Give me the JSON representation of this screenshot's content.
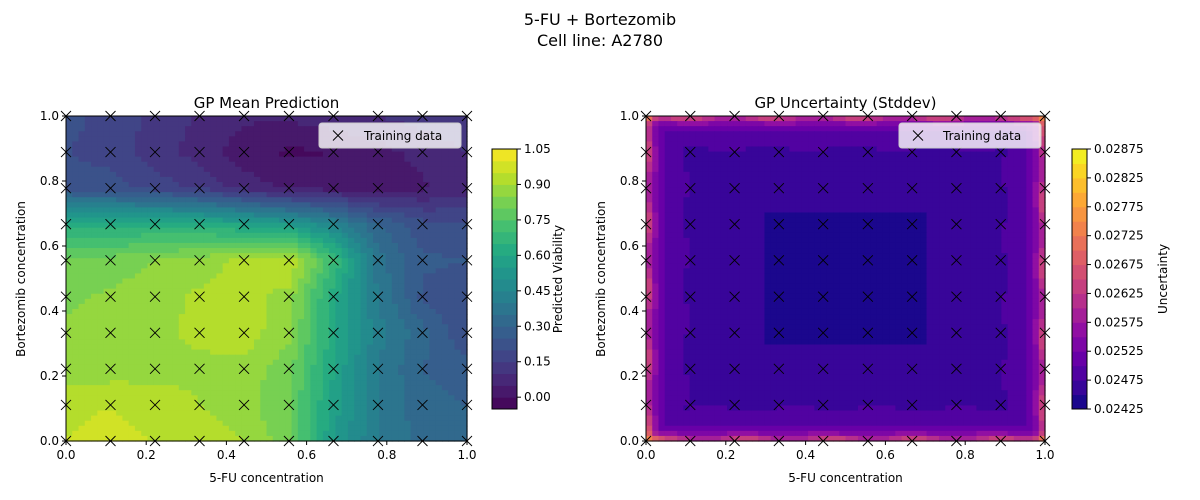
{
  "figure": {
    "title_line1": "5-FU + Bortezomib",
    "title_line2": "Cell line: A2780"
  },
  "chart_data": [
    {
      "type": "heatmap",
      "title": "GP Mean Prediction",
      "xlabel": "5-FU concentration",
      "ylabel": "Bortezomib concentration",
      "xlim": [
        0,
        1
      ],
      "ylim": [
        0,
        1
      ],
      "xticks": [
        "0.0",
        "0.2",
        "0.4",
        "0.6",
        "0.8",
        "1.0"
      ],
      "yticks": [
        "0.0",
        "0.2",
        "0.4",
        "0.6",
        "0.8",
        "1.0"
      ],
      "colormap": "viridis",
      "colorbar": {
        "label": "Predicted Viability",
        "range": [
          -0.05,
          1.05
        ],
        "ticks": [
          "0.00",
          "0.15",
          "0.30",
          "0.45",
          "0.60",
          "0.75",
          "0.90",
          "1.05"
        ]
      },
      "legend": {
        "label": "Training data",
        "marker": "x",
        "position": "top-right"
      },
      "training_grid": [
        0,
        0.111,
        0.222,
        0.333,
        0.444,
        0.556,
        0.667,
        0.778,
        0.889,
        1.0
      ],
      "z_grid_x": [
        0,
        0.111,
        0.222,
        0.333,
        0.444,
        0.556,
        0.667,
        0.778,
        0.889,
        1.0
      ],
      "z_grid_y": [
        0,
        0.111,
        0.222,
        0.333,
        0.444,
        0.556,
        0.667,
        0.778,
        0.889,
        1.0
      ],
      "z_values": [
        [
          0.95,
          0.96,
          0.95,
          0.93,
          0.9,
          0.82,
          0.55,
          0.4,
          0.33,
          0.31
        ],
        [
          0.94,
          0.95,
          0.93,
          0.9,
          0.87,
          0.8,
          0.58,
          0.4,
          0.32,
          0.3
        ],
        [
          0.86,
          0.87,
          0.88,
          0.89,
          0.88,
          0.82,
          0.6,
          0.4,
          0.3,
          0.27
        ],
        [
          0.86,
          0.87,
          0.89,
          0.91,
          0.93,
          0.86,
          0.62,
          0.42,
          0.32,
          0.2
        ],
        [
          0.84,
          0.86,
          0.88,
          0.91,
          0.92,
          0.88,
          0.62,
          0.4,
          0.24,
          0.21
        ],
        [
          0.8,
          0.82,
          0.85,
          0.87,
          0.92,
          0.95,
          0.7,
          0.37,
          0.26,
          0.25
        ],
        [
          0.62,
          0.63,
          0.64,
          0.63,
          0.59,
          0.55,
          0.45,
          0.3,
          0.22,
          0.2
        ],
        [
          0.23,
          0.22,
          0.18,
          0.14,
          0.08,
          0.04,
          0.03,
          0.02,
          0.04,
          0.08
        ],
        [
          0.2,
          0.18,
          0.12,
          0.08,
          0.02,
          -0.01,
          0.0,
          0.03,
          0.07,
          0.1
        ],
        [
          0.22,
          0.18,
          0.14,
          0.09,
          0.06,
          0.06,
          0.08,
          0.1,
          0.12,
          0.14
        ]
      ]
    },
    {
      "type": "heatmap",
      "title": "GP Uncertainty (Stddev)",
      "xlabel": "5-FU concentration",
      "ylabel": "Bortezomib concentration",
      "xlim": [
        0,
        1
      ],
      "ylim": [
        0,
        1
      ],
      "xticks": [
        "0.0",
        "0.2",
        "0.4",
        "0.6",
        "0.8",
        "1.0"
      ],
      "yticks": [
        "0.0",
        "0.2",
        "0.4",
        "0.6",
        "0.8",
        "1.0"
      ],
      "colormap": "plasma",
      "colorbar": {
        "label": "Uncertainty",
        "range": [
          0.02425,
          0.02875
        ],
        "ticks": [
          "0.02425",
          "0.02475",
          "0.02525",
          "0.02575",
          "0.02625",
          "0.02675",
          "0.02725",
          "0.02775",
          "0.02825",
          "0.02875"
        ]
      },
      "legend": {
        "label": "Training data",
        "marker": "x",
        "position": "top-right"
      },
      "training_grid": [
        0,
        0.111,
        0.222,
        0.333,
        0.444,
        0.556,
        0.667,
        0.778,
        0.889,
        1.0
      ],
      "model": {
        "center_value": 0.0244,
        "ring_value": 0.0249,
        "corner_value": 0.0287,
        "edge_value": 0.0262
      }
    }
  ]
}
